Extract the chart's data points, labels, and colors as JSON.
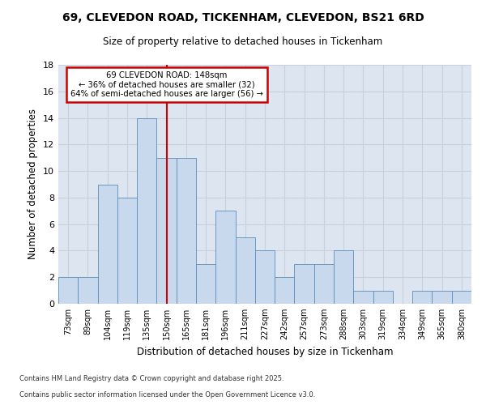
{
  "title_line1": "69, CLEVEDON ROAD, TICKENHAM, CLEVEDON, BS21 6RD",
  "title_line2": "Size of property relative to detached houses in Tickenham",
  "xlabel": "Distribution of detached houses by size in Tickenham",
  "ylabel": "Number of detached properties",
  "categories": [
    "73sqm",
    "89sqm",
    "104sqm",
    "119sqm",
    "135sqm",
    "150sqm",
    "165sqm",
    "181sqm",
    "196sqm",
    "211sqm",
    "227sqm",
    "242sqm",
    "257sqm",
    "273sqm",
    "288sqm",
    "303sqm",
    "319sqm",
    "334sqm",
    "349sqm",
    "365sqm",
    "380sqm"
  ],
  "values": [
    2,
    2,
    9,
    8,
    14,
    11,
    11,
    3,
    7,
    5,
    4,
    2,
    3,
    3,
    4,
    1,
    1,
    0,
    1,
    1,
    1
  ],
  "bar_color": "#c8d9ed",
  "bar_edge_color": "#5b8db8",
  "grid_color": "#c8d0dc",
  "background_color": "#dde6f0",
  "annotation_line1": "69 CLEVEDON ROAD: 148sqm",
  "annotation_line2": "← 36% of detached houses are smaller (32)",
  "annotation_line3": "64% of semi-detached houses are larger (56) →",
  "vline_index": 5,
  "vline_color": "#cc0000",
  "annotation_box_color": "#cc0000",
  "ylim": [
    0,
    18
  ],
  "yticks": [
    0,
    2,
    4,
    6,
    8,
    10,
    12,
    14,
    16,
    18
  ],
  "footer_line1": "Contains HM Land Registry data © Crown copyright and database right 2025.",
  "footer_line2": "Contains public sector information licensed under the Open Government Licence v3.0."
}
